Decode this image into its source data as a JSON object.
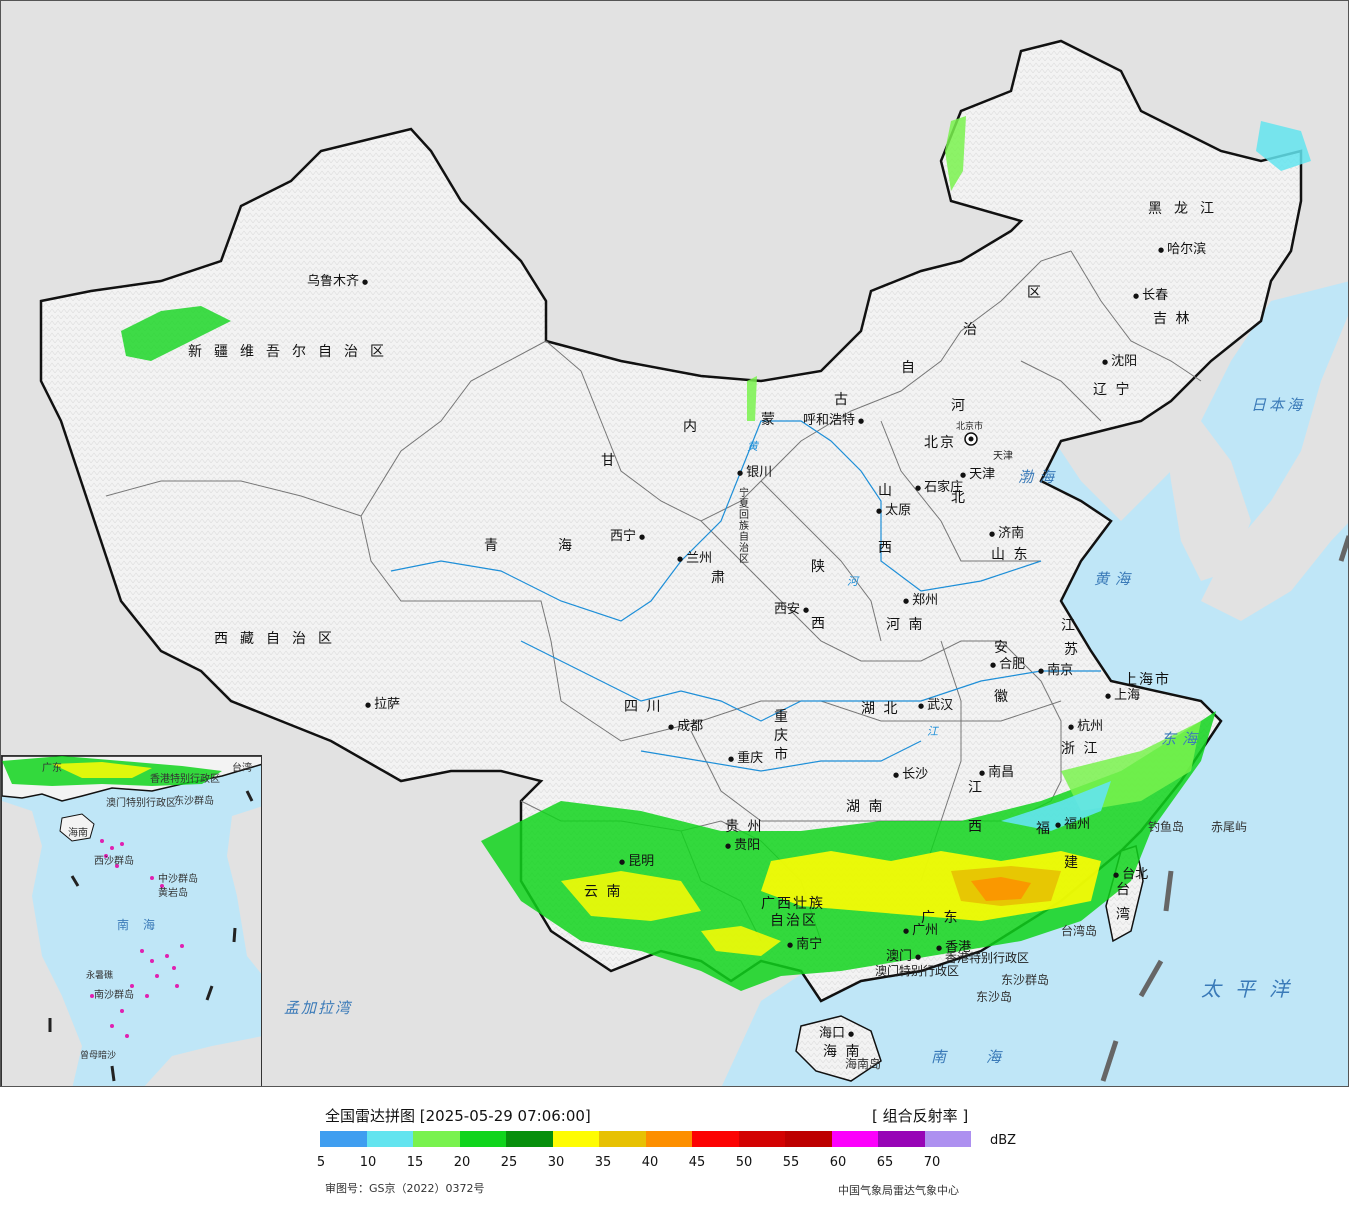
{
  "legend": {
    "title": "全国雷达拼图 [2025-05-29 07:06:00]",
    "product": "[ 组合反射率 ]",
    "unit": "dBZ",
    "ticks": [
      "5",
      "10",
      "15",
      "20",
      "25",
      "30",
      "35",
      "40",
      "45",
      "50",
      "55",
      "60",
      "65",
      "70"
    ],
    "colors": [
      "#3f9ef0",
      "#63e4ef",
      "#79f24e",
      "#10d41c",
      "#078f0c",
      "#fefc03",
      "#e7c103",
      "#fd8f00",
      "#fc0303",
      "#d30202",
      "#bd0000",
      "#fc00fc",
      "#9704b6",
      "#ad90f0"
    ],
    "review_no": "审图号：GS京（2022）0372号",
    "org": "中国气象局雷达气象中心"
  },
  "map": {
    "colors": {
      "sea": "#bfe6f7",
      "land_china": "#f3f3f3",
      "land_foreign": "#e2e2e2",
      "border": "#111111",
      "province": "#777777"
    },
    "provinces": [
      {
        "id": "xinjiang",
        "text": "新疆维吾尔自治区"
      },
      {
        "id": "xizang",
        "text": "西藏自治区"
      },
      {
        "id": "qinghai-1",
        "text": "青"
      },
      {
        "id": "qinghai-2",
        "text": "海"
      },
      {
        "id": "gansu",
        "text": "甘"
      },
      {
        "id": "gansu-2",
        "text": "肃"
      },
      {
        "id": "neimeng-1",
        "text": "内"
      },
      {
        "id": "neimeng-2",
        "text": "蒙"
      },
      {
        "id": "neimeng-3",
        "text": "古"
      },
      {
        "id": "neimeng-4",
        "text": "自"
      },
      {
        "id": "neimeng-5",
        "text": "治"
      },
      {
        "id": "neimeng-6",
        "text": "区"
      },
      {
        "id": "heilongjiang",
        "text": "黑龙江"
      },
      {
        "id": "jilin",
        "text": "吉 林"
      },
      {
        "id": "liaoning",
        "text": "辽 宁"
      },
      {
        "id": "hebei-1",
        "text": "河"
      },
      {
        "id": "hebei-2",
        "text": "北"
      },
      {
        "id": "shanxi-1",
        "text": "山"
      },
      {
        "id": "shanxi-2",
        "text": "西"
      },
      {
        "id": "shaanxi-1",
        "text": "陕"
      },
      {
        "id": "shaanxi-2",
        "text": "西"
      },
      {
        "id": "shandong",
        "text": "山 东"
      },
      {
        "id": "henan",
        "text": "河 南"
      },
      {
        "id": "sichuan",
        "text": "四    川"
      },
      {
        "id": "chongqing",
        "text": "重庆市"
      },
      {
        "id": "hubei",
        "text": "湖    北"
      },
      {
        "id": "anhui-1",
        "text": "安"
      },
      {
        "id": "anhui-2",
        "text": "徽"
      },
      {
        "id": "jiangsu-1",
        "text": "江"
      },
      {
        "id": "jiangsu-2",
        "text": "苏"
      },
      {
        "id": "zhejiang",
        "text": "浙 江"
      },
      {
        "id": "shanghai",
        "text": "上海市"
      },
      {
        "id": "guizhou",
        "text": "贵    州"
      },
      {
        "id": "hunan",
        "text": "湖    南"
      },
      {
        "id": "jiangxi-1",
        "text": "江"
      },
      {
        "id": "jiangxi-2",
        "text": "西"
      },
      {
        "id": "fujian-1",
        "text": "福"
      },
      {
        "id": "fujian-2",
        "text": "建"
      },
      {
        "id": "yunnan",
        "text": "云    南"
      },
      {
        "id": "guangxi-1",
        "text": "广西壮族"
      },
      {
        "id": "guangxi-2",
        "text": "自治区"
      },
      {
        "id": "guangdong",
        "text": "广 东"
      },
      {
        "id": "taiwan-1",
        "text": "台"
      },
      {
        "id": "taiwan-2",
        "text": "湾"
      },
      {
        "id": "hainan",
        "text": "海 南"
      },
      {
        "id": "ningxia",
        "text": "宁夏回族自治区"
      },
      {
        "id": "tianjin",
        "text": "天津"
      },
      {
        "id": "beijing",
        "text": "北京市"
      },
      {
        "id": "hongkong",
        "text": "香港特别行政区"
      },
      {
        "id": "macau",
        "text": "澳门特别行政区"
      }
    ],
    "cities": [
      {
        "id": "urumqi",
        "text": "乌鲁木齐"
      },
      {
        "id": "lhasa",
        "text": "拉萨"
      },
      {
        "id": "xining",
        "text": "西宁"
      },
      {
        "id": "lanzhou",
        "text": "兰州"
      },
      {
        "id": "yinchuan",
        "text": "银川"
      },
      {
        "id": "hohhot",
        "text": "呼和浩特"
      },
      {
        "id": "harbin",
        "text": "哈尔滨"
      },
      {
        "id": "changchun",
        "text": "长春"
      },
      {
        "id": "shenyang",
        "text": "沈阳"
      },
      {
        "id": "beijing",
        "text": "北京"
      },
      {
        "id": "tianjin",
        "text": "天津"
      },
      {
        "id": "shijiazhuang",
        "text": "石家庄"
      },
      {
        "id": "taiyuan",
        "text": "太原"
      },
      {
        "id": "jinan",
        "text": "济南"
      },
      {
        "id": "xian",
        "text": "西安"
      },
      {
        "id": "zhengzhou",
        "text": "郑州"
      },
      {
        "id": "hefei",
        "text": "合肥"
      },
      {
        "id": "nanjing",
        "text": "南京"
      },
      {
        "id": "shanghai",
        "text": "上海"
      },
      {
        "id": "hangzhou",
        "text": "杭州"
      },
      {
        "id": "wuhan",
        "text": "武汉"
      },
      {
        "id": "chengdu",
        "text": "成都"
      },
      {
        "id": "chongqing",
        "text": "重庆"
      },
      {
        "id": "changsha",
        "text": "长沙"
      },
      {
        "id": "nanchang",
        "text": "南昌"
      },
      {
        "id": "fuzhou",
        "text": "福州"
      },
      {
        "id": "guiyang",
        "text": "贵阳"
      },
      {
        "id": "kunming",
        "text": "昆明"
      },
      {
        "id": "nanning",
        "text": "南宁"
      },
      {
        "id": "guangzhou",
        "text": "广州"
      },
      {
        "id": "hongkong",
        "text": "香港"
      },
      {
        "id": "macau",
        "text": "澳门"
      },
      {
        "id": "taibei",
        "text": "台北"
      },
      {
        "id": "haikou",
        "text": "海口"
      }
    ],
    "seas": [
      {
        "id": "bohai",
        "text": "渤海"
      },
      {
        "id": "huanghai",
        "text": "黄海"
      },
      {
        "id": "donghai",
        "text": "东海"
      },
      {
        "id": "nanhai",
        "text": "南海"
      },
      {
        "id": "riben",
        "text": "日本海"
      },
      {
        "id": "taipingyang",
        "text": "太平洋"
      },
      {
        "id": "mengjiala",
        "text": "孟加拉湾"
      }
    ],
    "islands": [
      {
        "id": "diaoyu",
        "text": "钓鱼岛"
      },
      {
        "id": "chiwei",
        "text": "赤尾屿"
      },
      {
        "id": "taiwan-dao",
        "text": "台湾岛"
      },
      {
        "id": "dongsha-qundao",
        "text": "东沙群岛"
      },
      {
        "id": "dongsha-dao",
        "text": "东沙岛"
      },
      {
        "id": "hainan-dao",
        "text": "海南岛"
      }
    ],
    "rivers": [
      {
        "id": "huanghe",
        "text": "黄"
      },
      {
        "id": "huanghe-2",
        "text": "河"
      },
      {
        "id": "changjiang",
        "text": "江"
      }
    ]
  },
  "inset": {
    "labels": [
      {
        "id": "inset-guangdong",
        "text": "广东"
      },
      {
        "id": "inset-hongkong",
        "text": "香港特别行政区"
      },
      {
        "id": "inset-taiwan",
        "text": "台湾"
      },
      {
        "id": "inset-macau",
        "text": "澳门特别行政区"
      },
      {
        "id": "inset-dongsha",
        "text": "东沙群岛"
      },
      {
        "id": "inset-hainan",
        "text": "海南"
      },
      {
        "id": "inset-xisha",
        "text": "西沙群岛"
      },
      {
        "id": "inset-zhongsha",
        "text": "中沙群岛"
      },
      {
        "id": "inset-huangyan",
        "text": "黄岩岛"
      },
      {
        "id": "inset-nanhai",
        "text": "南海"
      },
      {
        "id": "inset-nansha",
        "text": "南沙群岛"
      },
      {
        "id": "inset-yongshu",
        "text": "永暑礁"
      },
      {
        "id": "inset-zengmu",
        "text": "曾母暗沙"
      }
    ]
  }
}
